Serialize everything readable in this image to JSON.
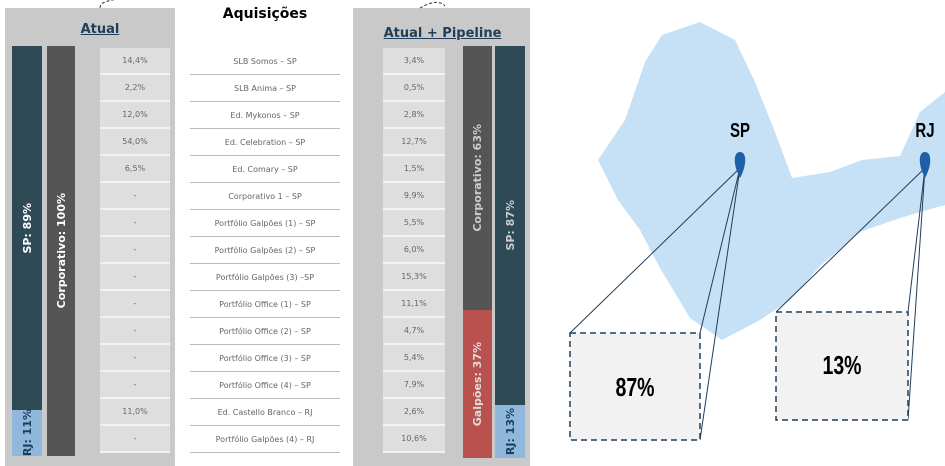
{
  "atual": {
    "title": "Atual",
    "bars": {
      "sp": "SP: 89%",
      "rj": "RJ: 11%",
      "corporativo": "Corporativo: 100%"
    },
    "values": [
      "14,4%",
      "2,2%",
      "12,0%",
      "54,0%",
      "6,5%",
      "-",
      "-",
      "-",
      "-",
      "-",
      "-",
      "-",
      "-",
      "11,0%",
      "-"
    ]
  },
  "aquisicoes": {
    "title": "Aquisições",
    "items": [
      "SLB Somos – SP",
      "SLB Anima – SP",
      "Ed. Mykonos – SP",
      "Ed. Celebration – SP",
      "Ed. Comary – SP",
      "Corporativo 1 – SP",
      "Portfólio Galpões (1) – SP",
      "Portfólio Galpões (2) – SP",
      "Portfólio Galpões (3) –SP",
      "Portfólio Office (1) – SP",
      "Portfólio Office (2) – SP",
      "Portfólio Office (3) – SP",
      "Portfólio Office (4) – SP",
      "Ed. Castello Branco – RJ",
      "Portfólio Galpões (4) – RJ"
    ]
  },
  "pipeline": {
    "title": "Atual + Pipeline",
    "bars": {
      "corporativo": "Corporativo: 63%",
      "galpoes": "Galpões: 37%",
      "sp": "SP: 87%",
      "rj": "RJ: 13%"
    },
    "values": [
      "3,4%",
      "0,5%",
      "2,8%",
      "12,7%",
      "1,5%",
      "9,9%",
      "5,5%",
      "6,0%",
      "15,3%",
      "11,1%",
      "4,7%",
      "5,4%",
      "7,9%",
      "2,6%",
      "10,6%"
    ]
  },
  "map": {
    "sp_label": "SP",
    "rj_label": "RJ",
    "sp_share": "87%",
    "rj_share": "13%"
  }
}
